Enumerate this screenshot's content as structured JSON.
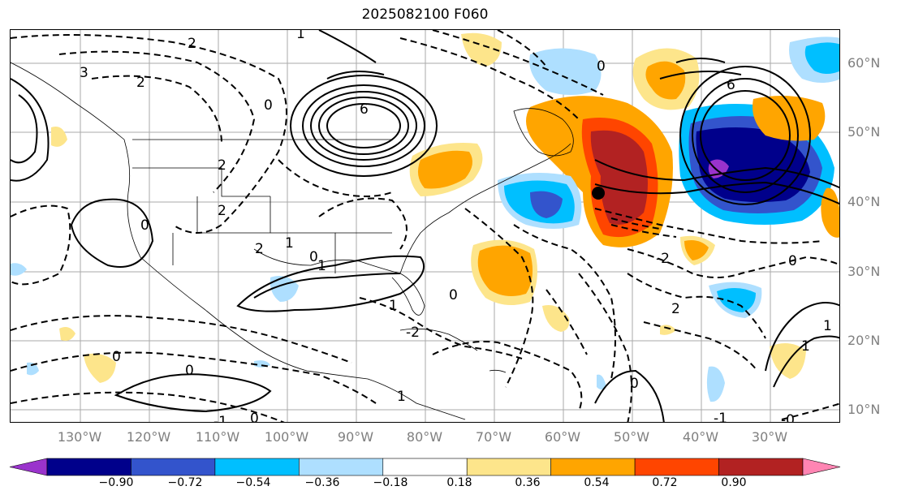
{
  "title": "2025082100 F060",
  "latitudes": [
    "60°N",
    "50°N",
    "40°N",
    "30°N",
    "20°N",
    "10°N"
  ],
  "longitudes": [
    "130°W",
    "120°W",
    "110°W",
    "100°W",
    "90°W",
    "80°W",
    "70°W",
    "60°W",
    "50°W",
    "40°W",
    "30°W"
  ],
  "contour_labels": [
    "2",
    "3",
    "2",
    "1",
    "0",
    "6",
    "6",
    "0",
    "2",
    "2",
    "1",
    "0",
    "2",
    "1",
    "0",
    "-2",
    "2",
    "0",
    "1",
    "0",
    "0",
    "1",
    "-1",
    "0",
    "1",
    "-1",
    "-0",
    "0",
    "1",
    "-2",
    "0"
  ],
  "colorbar": {
    "ticks": [
      "−0.90",
      "−0.72",
      "−0.54",
      "−0.36",
      "−0.18",
      "0.18",
      "0.36",
      "0.54",
      "0.72",
      "0.90"
    ],
    "colors": [
      "#9a33cc",
      "#00008b",
      "#3354cc",
      "#00bfff",
      "#aedfff",
      "#ffffff",
      "#fde58b",
      "#ffa500",
      "#ff4500",
      "#b22222",
      "#ff85b3"
    ]
  }
}
